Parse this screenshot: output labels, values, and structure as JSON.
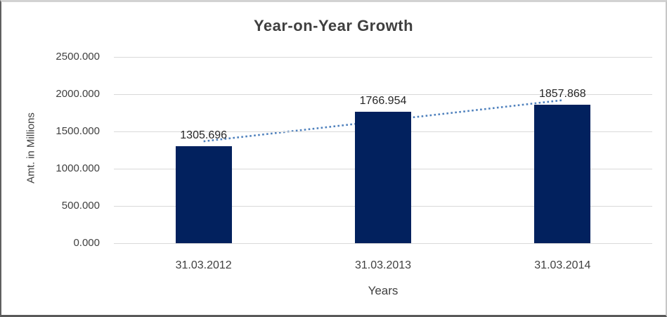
{
  "chart_data": {
    "type": "bar",
    "title": "Year-on-Year Growth",
    "xlabel": "Years",
    "ylabel": "Amt. in Millions",
    "categories": [
      "31.03.2012",
      "31.03.2013",
      "31.03.2014"
    ],
    "values": [
      1305.696,
      1766.954,
      1857.868
    ],
    "data_labels": [
      "1305.696",
      "1766.954",
      "1857.868"
    ],
    "ylim": [
      0,
      2500
    ],
    "ytick_labels_bottom_to_top": [
      "0.000",
      "500.000",
      "1000.000",
      "1500.000",
      "2000.000",
      "2500.000"
    ],
    "grid": true,
    "legend_position": "none",
    "trendline": {
      "type": "linear",
      "style": "dotted"
    },
    "colors": {
      "bar": "#02215E",
      "trendline": "#4F81BD",
      "gridline": "#D9D9D9",
      "title_text": "#3F3F3F",
      "axis_text": "#404040",
      "data_label_text": "#262626"
    }
  }
}
